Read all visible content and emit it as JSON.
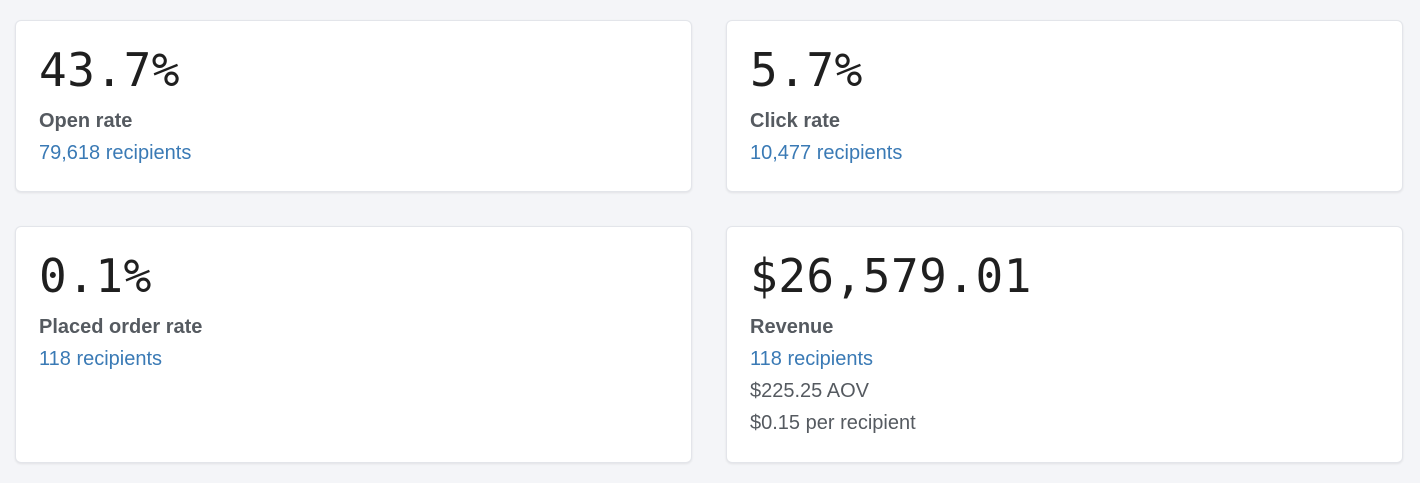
{
  "metrics": {
    "open_rate": {
      "value": "43.7%",
      "label": "Open rate",
      "recipients": "79,618 recipients"
    },
    "click_rate": {
      "value": "5.7%",
      "label": "Click rate",
      "recipients": "10,477 recipients"
    },
    "placed_order_rate": {
      "value": "0.1%",
      "label": "Placed order rate",
      "recipients": "118 recipients"
    },
    "revenue": {
      "value": "$26,579.01",
      "label": "Revenue",
      "recipients": "118 recipients",
      "aov": "$225.25 AOV",
      "per_recipient": "$0.15 per recipient"
    }
  },
  "colors": {
    "background": "#f4f5f8",
    "card": "#ffffff",
    "link": "#3a7ab5",
    "label": "#555a60",
    "value": "#1f1f1f"
  }
}
